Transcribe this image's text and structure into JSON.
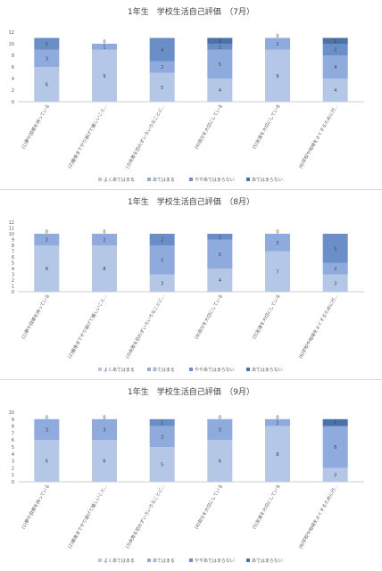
{
  "chart_data": [
    {
      "type": "bar",
      "stacked": true,
      "title": "1年生　学校生活自己評価　（7月）",
      "categories": [
        "(1)夢や目標を持っている",
        "(2)最後までやり遂げて嬉しいこと…",
        "(3)失敗を恐れずいろいろなことに…",
        "(4)自分を大切にしている",
        "(5)友達を大切にしている",
        "(6)学校や地域をよくするために行…"
      ],
      "series": [
        {
          "name": "よくあてはまる",
          "color": "#b4c7e7",
          "values": [
            6,
            9,
            5,
            4,
            9,
            4
          ]
        },
        {
          "name": "あてはまる",
          "color": "#8faadc",
          "values": [
            3,
            1,
            2,
            5,
            2,
            4
          ]
        },
        {
          "name": "ややあてはまらない",
          "color": "#6a8fc8",
          "values": [
            2,
            0,
            4,
            1,
            0,
            2
          ]
        },
        {
          "name": "あてはまらない",
          "color": "#4a71a8",
          "values": [
            0,
            0,
            0,
            1,
            0,
            1
          ]
        }
      ],
      "ylim": [
        0,
        12
      ],
      "yticks": [
        0,
        2,
        4,
        6,
        8,
        10,
        12
      ],
      "grid": false,
      "legend": "bottom"
    },
    {
      "type": "bar",
      "stacked": true,
      "title": "1年生　学校生活自己評価　（8月）",
      "categories": [
        "(1)夢や目標を持っている",
        "(2)最後までやり遂げて嬉しいこと…",
        "(3)失敗を恐れずいろいろなことに…",
        "(4)自分を大切にしている",
        "(5)友達を大切にしている",
        "(6)学校や地域をよくするために行…"
      ],
      "series": [
        {
          "name": "よくあてはまる",
          "color": "#b4c7e7",
          "values": [
            8,
            8,
            3,
            4,
            7,
            3
          ]
        },
        {
          "name": "あてはまる",
          "color": "#8faadc",
          "values": [
            2,
            2,
            5,
            5,
            3,
            2
          ]
        },
        {
          "name": "ややあてはまらない",
          "color": "#6a8fc8",
          "values": [
            0,
            0,
            2,
            1,
            0,
            5
          ]
        },
        {
          "name": "あてはまらない",
          "color": "#4a71a8",
          "values": [
            0,
            0,
            0,
            0,
            0,
            0
          ]
        }
      ],
      "ylim": [
        0,
        12
      ],
      "yticks": [
        0,
        1,
        2,
        3,
        4,
        5,
        6,
        7,
        8,
        9,
        10,
        11,
        12
      ],
      "grid": false,
      "legend": "bottom"
    },
    {
      "type": "bar",
      "stacked": true,
      "title": "1年生　学校生活自己評価　（9月）",
      "categories": [
        "(1)夢や目標を持っている",
        "(2)最後までやり遂げて嬉しいこと…",
        "(3)失敗を恐れずいろいろなことに…",
        "(4)自分を大切にしている",
        "(5)友達を大切にしている",
        "(6)学校や地域をよくするために行…"
      ],
      "series": [
        {
          "name": "よくあてはまる",
          "color": "#b4c7e7",
          "values": [
            6,
            6,
            5,
            6,
            8,
            2
          ]
        },
        {
          "name": "あてはまる",
          "color": "#8faadc",
          "values": [
            3,
            3,
            3,
            3,
            1,
            6
          ]
        },
        {
          "name": "ややあてはまらない",
          "color": "#6a8fc8",
          "values": [
            0,
            0,
            1,
            0,
            0,
            0
          ]
        },
        {
          "name": "あてはまらない",
          "color": "#4a71a8",
          "values": [
            0,
            0,
            0,
            0,
            0,
            1
          ]
        }
      ],
      "ylim": [
        0,
        10
      ],
      "yticks": [
        0,
        1,
        2,
        3,
        4,
        5,
        6,
        7,
        8,
        9,
        10
      ],
      "grid": false,
      "legend": "bottom"
    }
  ]
}
